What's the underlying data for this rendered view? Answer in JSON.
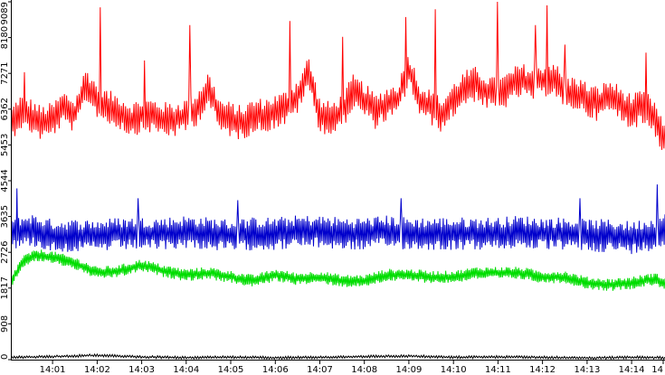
{
  "chart_data": {
    "type": "line",
    "title": "",
    "xlabel": "",
    "ylabel": "",
    "ylim": [
      0,
      9089
    ],
    "xlim": [
      "14:00:05",
      "14:14:45"
    ],
    "y_ticks": [
      "0",
      "908",
      "1817",
      "2726",
      "3635",
      "4544",
      "5453",
      "6362",
      "7271",
      "8180",
      "9089"
    ],
    "x_ticks": [
      "14:01",
      "14:02",
      "14:03",
      "14:04",
      "14:05",
      "14:06",
      "14:07",
      "14:08",
      "14:09",
      "14:10",
      "14:11",
      "14:12",
      "14:13",
      "14:14",
      "14"
    ],
    "grid": false,
    "legend": "none",
    "series": [
      {
        "color": "#ff0000",
        "anchor_times": [
          "14:00:05",
          "14:00:15",
          "14:00:30",
          "14:00:45",
          "14:01:00",
          "14:01:15",
          "14:01:30",
          "14:01:45",
          "14:02:00",
          "14:02:15",
          "14:02:30",
          "14:02:45",
          "14:03:00",
          "14:03:15",
          "14:03:30",
          "14:03:45",
          "14:04:00",
          "14:04:15",
          "14:04:30",
          "14:04:45",
          "14:05:00",
          "14:05:15",
          "14:05:30",
          "14:05:45",
          "14:06:00",
          "14:06:15",
          "14:06:30",
          "14:06:45",
          "14:07:00",
          "14:07:15",
          "14:07:30",
          "14:07:45",
          "14:08:00",
          "14:08:15",
          "14:08:30",
          "14:08:45",
          "14:09:00",
          "14:09:15",
          "14:09:30",
          "14:09:45",
          "14:10:00",
          "14:10:15",
          "14:10:30",
          "14:10:45",
          "14:11:00",
          "14:11:15",
          "14:11:30",
          "14:11:45",
          "14:12:00",
          "14:12:15",
          "14:12:30",
          "14:12:45",
          "14:13:00",
          "14:13:15",
          "14:13:30",
          "14:13:45",
          "14:14:00",
          "14:14:15",
          "14:14:30",
          "14:14:45"
        ],
        "anchor_values": [
          6000,
          6300,
          6200,
          6000,
          6100,
          6400,
          6200,
          7000,
          6600,
          6400,
          6300,
          6100,
          6200,
          6200,
          6100,
          6100,
          6200,
          6400,
          6900,
          6200,
          6100,
          6000,
          6200,
          6200,
          6300,
          6400,
          6700,
          7300,
          6200,
          6100,
          6300,
          6800,
          6600,
          6300,
          6500,
          6600,
          7400,
          6600,
          6400,
          6200,
          6600,
          6900,
          7000,
          6800,
          6700,
          6900,
          7100,
          7000,
          7100,
          7200,
          6700,
          6800,
          6600,
          6500,
          6700,
          6500,
          6300,
          6400,
          6200,
          5500
        ],
        "amplitude": 450,
        "cycles": 310,
        "spikes": [
          {
            "t": "14:00:22",
            "v": 7300
          },
          {
            "t": "14:02:04",
            "v": 8950
          },
          {
            "t": "14:03:04",
            "v": 7600
          },
          {
            "t": "14:04:05",
            "v": 8500
          },
          {
            "t": "14:06:20",
            "v": 8600
          },
          {
            "t": "14:07:30",
            "v": 8200
          },
          {
            "t": "14:08:56",
            "v": 8700
          },
          {
            "t": "14:09:36",
            "v": 8900
          },
          {
            "t": "14:11:00",
            "v": 9100
          },
          {
            "t": "14:11:50",
            "v": 8500
          },
          {
            "t": "14:12:06",
            "v": 9000
          },
          {
            "t": "14:12:30",
            "v": 8000
          },
          {
            "t": "14:14:20",
            "v": 7800
          }
        ]
      },
      {
        "color": "#0000cc",
        "anchor_times": [
          "14:00:05",
          "14:00:30",
          "14:01:00",
          "14:01:30",
          "14:02:00",
          "14:02:30",
          "14:03:00",
          "14:03:30",
          "14:04:00",
          "14:04:30",
          "14:05:00",
          "14:05:30",
          "14:06:00",
          "14:06:30",
          "14:07:00",
          "14:07:30",
          "14:08:00",
          "14:08:30",
          "14:09:00",
          "14:09:30",
          "14:10:00",
          "14:10:30",
          "14:11:00",
          "14:11:30",
          "14:12:00",
          "14:12:30",
          "14:13:00",
          "14:13:30",
          "14:14:00",
          "14:14:30",
          "14:14:45"
        ],
        "anchor_values": [
          3200,
          3300,
          3150,
          3150,
          3150,
          3200,
          3200,
          3200,
          3250,
          3200,
          3150,
          3200,
          3200,
          3250,
          3250,
          3200,
          3200,
          3250,
          3200,
          3200,
          3200,
          3200,
          3200,
          3250,
          3200,
          3200,
          3150,
          3150,
          3100,
          3200,
          3300
        ],
        "amplitude": 420,
        "cycles": 380,
        "spikes": [
          {
            "t": "14:00:12",
            "v": 4350
          },
          {
            "t": "14:02:55",
            "v": 4100
          },
          {
            "t": "14:05:10",
            "v": 4050
          },
          {
            "t": "14:08:50",
            "v": 4100
          },
          {
            "t": "14:12:50",
            "v": 4100
          },
          {
            "t": "14:14:35",
            "v": 4450
          }
        ]
      },
      {
        "color": "#00dd00",
        "anchor_times": [
          "14:00:05",
          "14:00:20",
          "14:00:40",
          "14:01:00",
          "14:01:30",
          "14:02:00",
          "14:02:30",
          "14:03:00",
          "14:03:30",
          "14:04:00",
          "14:04:30",
          "14:05:00",
          "14:05:30",
          "14:06:00",
          "14:06:30",
          "14:07:00",
          "14:07:30",
          "14:08:00",
          "14:08:30",
          "14:09:00",
          "14:09:30",
          "14:10:00",
          "14:10:30",
          "14:11:00",
          "14:11:30",
          "14:12:00",
          "14:12:30",
          "14:13:00",
          "14:13:30",
          "14:14:00",
          "14:14:30",
          "14:14:45"
        ],
        "anchor_values": [
          2000,
          2500,
          2650,
          2600,
          2450,
          2200,
          2250,
          2400,
          2250,
          2150,
          2200,
          2100,
          2000,
          2150,
          2050,
          2100,
          2000,
          2000,
          2150,
          2150,
          2100,
          2100,
          2200,
          2200,
          2200,
          2100,
          2100,
          1950,
          1900,
          1950,
          2050,
          1950
        ],
        "amplitude": 160,
        "cycles": 420,
        "spikes": []
      },
      {
        "color": "#000000",
        "anchor_times": [
          "14:00:05",
          "14:01:00",
          "14:02:00",
          "14:03:00",
          "14:04:00",
          "14:05:00",
          "14:06:00",
          "14:07:00",
          "14:08:00",
          "14:09:00",
          "14:10:00",
          "14:11:00",
          "14:12:00",
          "14:13:00",
          "14:14:00",
          "14:14:45"
        ],
        "anchor_values": [
          60,
          80,
          110,
          70,
          50,
          60,
          50,
          60,
          80,
          90,
          60,
          70,
          60,
          40,
          60,
          50
        ],
        "amplitude": 35,
        "cycles": 260,
        "spikes": []
      }
    ]
  }
}
